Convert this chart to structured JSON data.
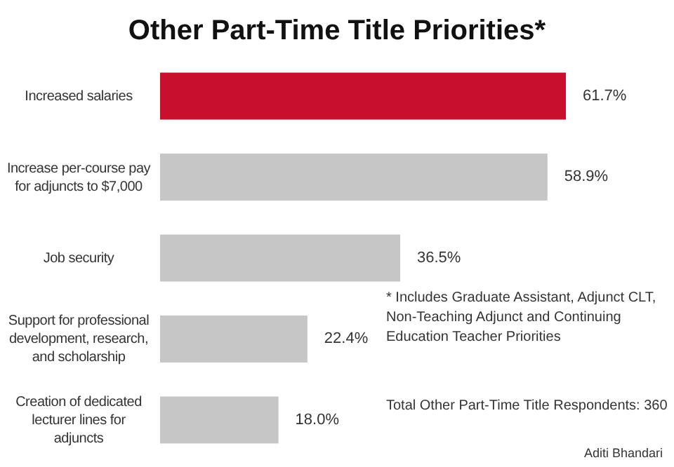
{
  "chart_data": {
    "type": "bar",
    "orientation": "horizontal",
    "data_labels": true,
    "title": "Other Part-Time Title Priorities*",
    "categories": [
      "Increased salaries",
      "Increase per-course pay\nfor adjuncts to $7,000",
      "Job security",
      "Support for professional\ndevelopment, research,\nand scholarship",
      "Creation of dedicated\nlecturer lines for\nadjuncts"
    ],
    "values": [
      61.7,
      58.9,
      36.5,
      22.4,
      18.0
    ],
    "value_labels": [
      "61.7%",
      "58.9%",
      "36.5%",
      "22.4%",
      "18.0%"
    ],
    "colors": [
      "#c8102e",
      "#c6c6c6",
      "#c6c6c6",
      "#c6c6c6",
      "#c6c6c6"
    ],
    "annotations": [
      "* Includes Graduate Assistant, Adjunct CLT,\nNon-Teaching Adjunct and Continuing\nEducation Teacher Priorities",
      "Total Other Part-Time Title Respondents: 360",
      "Aditi Bhandari"
    ]
  }
}
